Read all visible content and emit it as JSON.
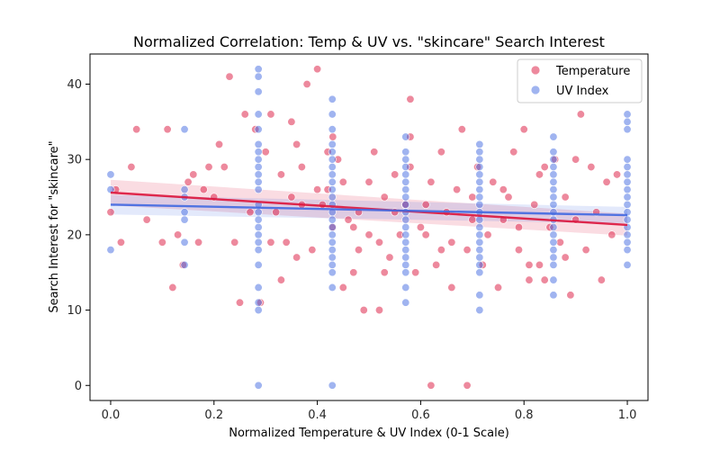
{
  "chart_data": {
    "type": "scatter",
    "title": "Normalized Correlation: Temp & UV vs. \"skincare\" Search Interest",
    "xlabel": "Normalized Temperature & UV Index (0-1 Scale)",
    "ylabel": "Search Interest for \"skincare\"",
    "xlim": [
      -0.04,
      1.04
    ],
    "ylim": [
      -2,
      44
    ],
    "xticks": [
      0.0,
      0.2,
      0.4,
      0.6,
      0.8,
      1.0
    ],
    "xtick_labels": [
      "0.0",
      "0.2",
      "0.4",
      "0.6",
      "0.8",
      "1.0"
    ],
    "yticks": [
      0,
      10,
      20,
      30,
      40
    ],
    "ytick_labels": [
      "0",
      "10",
      "20",
      "30",
      "40"
    ],
    "grid": false,
    "legend": {
      "position": "top-right"
    },
    "series": [
      {
        "name": "Temperature",
        "color": "#dc143c",
        "regression": {
          "x": [
            0.0,
            1.0
          ],
          "y": [
            25.6,
            21.3
          ],
          "ci_low": [
            23.9,
            19.9
          ],
          "ci_high": [
            27.3,
            22.8
          ]
        },
        "points": [
          [
            0.0,
            23
          ],
          [
            0.01,
            26
          ],
          [
            0.02,
            19
          ],
          [
            0.04,
            29
          ],
          [
            0.05,
            34
          ],
          [
            0.07,
            22
          ],
          [
            0.1,
            19
          ],
          [
            0.11,
            34
          ],
          [
            0.12,
            13
          ],
          [
            0.13,
            20
          ],
          [
            0.14,
            16
          ],
          [
            0.15,
            27
          ],
          [
            0.16,
            28
          ],
          [
            0.17,
            19
          ],
          [
            0.18,
            26
          ],
          [
            0.19,
            29
          ],
          [
            0.2,
            25
          ],
          [
            0.21,
            32
          ],
          [
            0.22,
            29
          ],
          [
            0.23,
            41
          ],
          [
            0.24,
            19
          ],
          [
            0.25,
            11
          ],
          [
            0.26,
            36
          ],
          [
            0.27,
            23
          ],
          [
            0.28,
            34
          ],
          [
            0.29,
            11
          ],
          [
            0.3,
            31
          ],
          [
            0.31,
            36
          ],
          [
            0.32,
            23
          ],
          [
            0.33,
            28
          ],
          [
            0.34,
            19
          ],
          [
            0.35,
            25
          ],
          [
            0.36,
            32
          ],
          [
            0.37,
            29
          ],
          [
            0.38,
            40
          ],
          [
            0.39,
            18
          ],
          [
            0.4,
            42
          ],
          [
            0.41,
            24
          ],
          [
            0.42,
            26
          ],
          [
            0.43,
            33
          ],
          [
            0.44,
            30
          ],
          [
            0.45,
            27
          ],
          [
            0.46,
            22
          ],
          [
            0.47,
            15
          ],
          [
            0.48,
            18
          ],
          [
            0.49,
            10
          ],
          [
            0.5,
            27
          ],
          [
            0.51,
            31
          ],
          [
            0.52,
            19
          ],
          [
            0.53,
            25
          ],
          [
            0.54,
            17
          ],
          [
            0.55,
            28
          ],
          [
            0.56,
            20
          ],
          [
            0.57,
            24
          ],
          [
            0.58,
            29
          ],
          [
            0.59,
            15
          ],
          [
            0.6,
            21
          ],
          [
            0.61,
            24
          ],
          [
            0.62,
            27
          ],
          [
            0.63,
            16
          ],
          [
            0.64,
            31
          ],
          [
            0.65,
            23
          ],
          [
            0.66,
            19
          ],
          [
            0.67,
            26
          ],
          [
            0.68,
            34
          ],
          [
            0.69,
            18
          ],
          [
            0.7,
            25
          ],
          [
            0.71,
            29
          ],
          [
            0.72,
            16
          ],
          [
            0.73,
            20
          ],
          [
            0.74,
            27
          ],
          [
            0.75,
            13
          ],
          [
            0.76,
            22
          ],
          [
            0.77,
            25
          ],
          [
            0.78,
            31
          ],
          [
            0.79,
            18
          ],
          [
            0.8,
            34
          ],
          [
            0.81,
            16
          ],
          [
            0.82,
            24
          ],
          [
            0.83,
            28
          ],
          [
            0.84,
            14
          ],
          [
            0.85,
            21
          ],
          [
            0.86,
            30
          ],
          [
            0.87,
            19
          ],
          [
            0.88,
            25
          ],
          [
            0.89,
            12
          ],
          [
            0.9,
            22
          ],
          [
            0.91,
            36
          ],
          [
            0.92,
            18
          ],
          [
            0.93,
            29
          ],
          [
            0.94,
            23
          ],
          [
            0.95,
            14
          ],
          [
            0.96,
            27
          ],
          [
            0.97,
            20
          ],
          [
            0.98,
            28
          ],
          [
            0.43,
            21
          ],
          [
            0.45,
            13
          ],
          [
            0.52,
            10
          ],
          [
            0.62,
            0
          ],
          [
            0.58,
            33
          ],
          [
            0.66,
            13
          ],
          [
            0.69,
            0
          ],
          [
            0.61,
            20
          ],
          [
            0.55,
            23
          ],
          [
            0.64,
            18
          ],
          [
            0.7,
            22
          ],
          [
            0.79,
            21
          ],
          [
            0.81,
            14
          ],
          [
            0.83,
            16
          ],
          [
            0.35,
            35
          ],
          [
            0.33,
            14
          ],
          [
            0.36,
            17
          ],
          [
            0.4,
            26
          ],
          [
            0.47,
            21
          ],
          [
            0.58,
            38
          ],
          [
            0.5,
            20
          ],
          [
            0.53,
            15
          ],
          [
            0.76,
            26
          ],
          [
            0.84,
            29
          ],
          [
            0.88,
            17
          ],
          [
            0.9,
            30
          ],
          [
            0.31,
            19
          ],
          [
            0.37,
            24
          ],
          [
            0.42,
            31
          ],
          [
            0.48,
            23
          ]
        ]
      },
      {
        "name": "UV Index",
        "color": "#4169e1",
        "regression": {
          "x": [
            0.0,
            1.0
          ],
          "y": [
            24.0,
            22.6
          ],
          "ci_low": [
            22.7,
            21.5
          ],
          "ci_high": [
            25.3,
            23.7
          ]
        },
        "points": [
          [
            0.0,
            28
          ],
          [
            0.0,
            26
          ],
          [
            0.0,
            18
          ],
          [
            0.143,
            34
          ],
          [
            0.143,
            26
          ],
          [
            0.143,
            25
          ],
          [
            0.143,
            23
          ],
          [
            0.143,
            22
          ],
          [
            0.143,
            19
          ],
          [
            0.143,
            16
          ],
          [
            0.286,
            42
          ],
          [
            0.286,
            41
          ],
          [
            0.286,
            39
          ],
          [
            0.286,
            36
          ],
          [
            0.286,
            34
          ],
          [
            0.286,
            32
          ],
          [
            0.286,
            31
          ],
          [
            0.286,
            30
          ],
          [
            0.286,
            29
          ],
          [
            0.286,
            28
          ],
          [
            0.286,
            27
          ],
          [
            0.286,
            26
          ],
          [
            0.286,
            24
          ],
          [
            0.286,
            23
          ],
          [
            0.286,
            22
          ],
          [
            0.286,
            21
          ],
          [
            0.286,
            20
          ],
          [
            0.286,
            19
          ],
          [
            0.286,
            18
          ],
          [
            0.286,
            16
          ],
          [
            0.286,
            13
          ],
          [
            0.286,
            11
          ],
          [
            0.286,
            10
          ],
          [
            0.286,
            0
          ],
          [
            0.429,
            38
          ],
          [
            0.429,
            36
          ],
          [
            0.429,
            34
          ],
          [
            0.429,
            32
          ],
          [
            0.429,
            31
          ],
          [
            0.429,
            30
          ],
          [
            0.429,
            29
          ],
          [
            0.429,
            28
          ],
          [
            0.429,
            27
          ],
          [
            0.429,
            26
          ],
          [
            0.429,
            25
          ],
          [
            0.429,
            24
          ],
          [
            0.429,
            23
          ],
          [
            0.429,
            22
          ],
          [
            0.429,
            21
          ],
          [
            0.429,
            20
          ],
          [
            0.429,
            19
          ],
          [
            0.429,
            18
          ],
          [
            0.429,
            17
          ],
          [
            0.429,
            16
          ],
          [
            0.429,
            15
          ],
          [
            0.429,
            13
          ],
          [
            0.429,
            0
          ],
          [
            0.571,
            33
          ],
          [
            0.571,
            31
          ],
          [
            0.571,
            30
          ],
          [
            0.571,
            29
          ],
          [
            0.571,
            28
          ],
          [
            0.571,
            27
          ],
          [
            0.571,
            26
          ],
          [
            0.571,
            25
          ],
          [
            0.571,
            24
          ],
          [
            0.571,
            23
          ],
          [
            0.571,
            22
          ],
          [
            0.571,
            21
          ],
          [
            0.571,
            20
          ],
          [
            0.571,
            19
          ],
          [
            0.571,
            18
          ],
          [
            0.571,
            17
          ],
          [
            0.571,
            16
          ],
          [
            0.571,
            15
          ],
          [
            0.571,
            13
          ],
          [
            0.571,
            11
          ],
          [
            0.714,
            32
          ],
          [
            0.714,
            31
          ],
          [
            0.714,
            30
          ],
          [
            0.714,
            29
          ],
          [
            0.714,
            28
          ],
          [
            0.714,
            27
          ],
          [
            0.714,
            26
          ],
          [
            0.714,
            25
          ],
          [
            0.714,
            24
          ],
          [
            0.714,
            23
          ],
          [
            0.714,
            22
          ],
          [
            0.714,
            21
          ],
          [
            0.714,
            20
          ],
          [
            0.714,
            19
          ],
          [
            0.714,
            18
          ],
          [
            0.714,
            17
          ],
          [
            0.714,
            16
          ],
          [
            0.714,
            15
          ],
          [
            0.714,
            12
          ],
          [
            0.714,
            10
          ],
          [
            0.857,
            33
          ],
          [
            0.857,
            31
          ],
          [
            0.857,
            30
          ],
          [
            0.857,
            29
          ],
          [
            0.857,
            28
          ],
          [
            0.857,
            27
          ],
          [
            0.857,
            26
          ],
          [
            0.857,
            25
          ],
          [
            0.857,
            24
          ],
          [
            0.857,
            23
          ],
          [
            0.857,
            22
          ],
          [
            0.857,
            21
          ],
          [
            0.857,
            20
          ],
          [
            0.857,
            19
          ],
          [
            0.857,
            18
          ],
          [
            0.857,
            17
          ],
          [
            0.857,
            16
          ],
          [
            0.857,
            14
          ],
          [
            0.857,
            12
          ],
          [
            1.0,
            36
          ],
          [
            1.0,
            35
          ],
          [
            1.0,
            34
          ],
          [
            1.0,
            30
          ],
          [
            1.0,
            29
          ],
          [
            1.0,
            28
          ],
          [
            1.0,
            27
          ],
          [
            1.0,
            26
          ],
          [
            1.0,
            25
          ],
          [
            1.0,
            24
          ],
          [
            1.0,
            23
          ],
          [
            1.0,
            22
          ],
          [
            1.0,
            21
          ],
          [
            1.0,
            20
          ],
          [
            1.0,
            19
          ],
          [
            1.0,
            18
          ],
          [
            1.0,
            16
          ]
        ]
      }
    ]
  }
}
